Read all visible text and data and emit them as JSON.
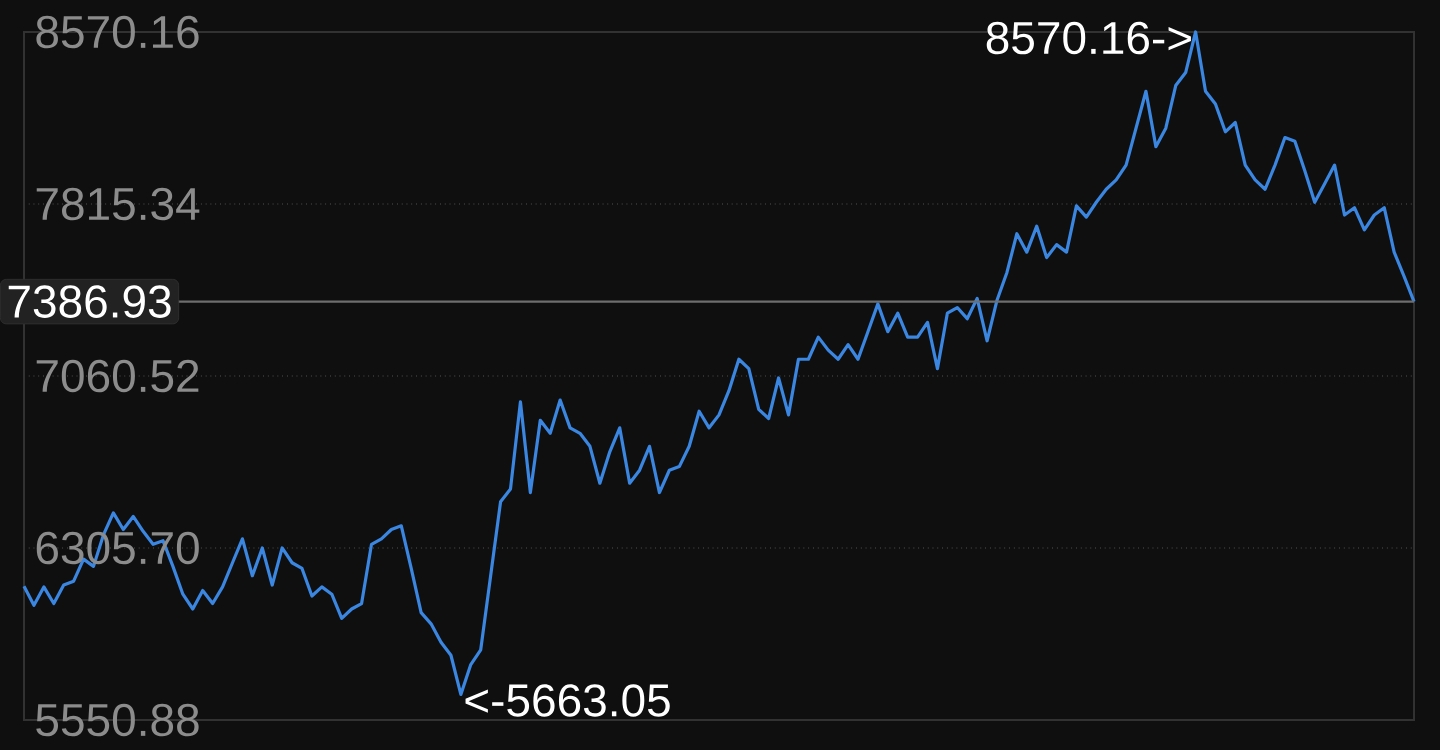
{
  "chart_data": {
    "type": "line",
    "categories": [
      null,
      null,
      null,
      null,
      null,
      null,
      null,
      null,
      null,
      null,
      null,
      null,
      null,
      null,
      null,
      null,
      null,
      null,
      null,
      null,
      null,
      null,
      null,
      null,
      null,
      null,
      null,
      null,
      null,
      null,
      null,
      null,
      null,
      null,
      null,
      null,
      null,
      null,
      null,
      null,
      null,
      null,
      null,
      null,
      null,
      null,
      null,
      null,
      null,
      null,
      null,
      null,
      null,
      null,
      null,
      null,
      null,
      null,
      null,
      null,
      null,
      null,
      null,
      null,
      null,
      null,
      null,
      null,
      null,
      null,
      null,
      null,
      null,
      null,
      null,
      null,
      null,
      null,
      null,
      null,
      null,
      null,
      null,
      null,
      null,
      null,
      null,
      null,
      null,
      null,
      null,
      null,
      null,
      null,
      null,
      null,
      null,
      null,
      null,
      null,
      null,
      null,
      null,
      null,
      null,
      null,
      null,
      null,
      null,
      null,
      null,
      null,
      null,
      null,
      null,
      null,
      null,
      null,
      null,
      null,
      null,
      null,
      null,
      null,
      null,
      null,
      null,
      null,
      null,
      null,
      null,
      null,
      null,
      null,
      null,
      null,
      null,
      null,
      null,
      null,
      null
    ],
    "series": [
      {
        "color": "#3a86e0",
        "values": [
          6138,
          6054,
          6135,
          6062,
          6143,
          6160,
          6257,
          6225,
          6363,
          6460,
          6387,
          6444,
          6379,
          6322,
          6338,
          6225,
          6103,
          6038,
          6119,
          6062,
          6135,
          6241,
          6346,
          6184,
          6306,
          6143,
          6306,
          6241,
          6216,
          6095,
          6135,
          6103,
          5997,
          6038,
          6062,
          6322,
          6346,
          6387,
          6403,
          6216,
          6022,
          5973,
          5892,
          5835,
          5663.05,
          5794,
          5859,
          6184,
          6509,
          6565,
          6947,
          6549,
          6866,
          6809,
          6955,
          6833,
          6809,
          6752,
          6590,
          6728,
          6833,
          6590,
          6647,
          6752,
          6549,
          6647,
          6663,
          6752,
          6906,
          6833,
          6890,
          6996,
          7134,
          7093,
          6914,
          6874,
          7052,
          6890,
          7134,
          7134,
          7231,
          7174,
          7134,
          7198,
          7134,
          7255,
          7377,
          7255,
          7336,
          7231,
          7231,
          7296,
          7093,
          7336,
          7361,
          7312,
          7401,
          7215,
          7393,
          7515,
          7685,
          7604,
          7718,
          7580,
          7637,
          7604,
          7807,
          7758,
          7823,
          7880,
          7921,
          7986,
          8148,
          8310,
          8067,
          8148,
          8335,
          8392,
          8570.16,
          8310,
          8254,
          8132,
          8173,
          7986,
          7921,
          7880,
          7986,
          8107,
          8091,
          7961,
          7823,
          7904,
          7986,
          7767,
          7799,
          7702,
          7767,
          7799,
          7604,
          7498,
          7386.93
        ]
      }
    ],
    "ylim": [
      5550.88,
      8570.16
    ],
    "yticks": [
      8570.16,
      7815.34,
      7060.52,
      {
        "value": 6305.7,
        "label": "6305.70"
      },
      5550.88
    ],
    "grid": "y",
    "tick_labels": "y",
    "ref_lines": [
      {
        "axis": "y",
        "value": 7386.93,
        "label": "7386.93"
      }
    ],
    "annotations": [
      "8570.16->",
      "<-5663.05"
    ]
  }
}
